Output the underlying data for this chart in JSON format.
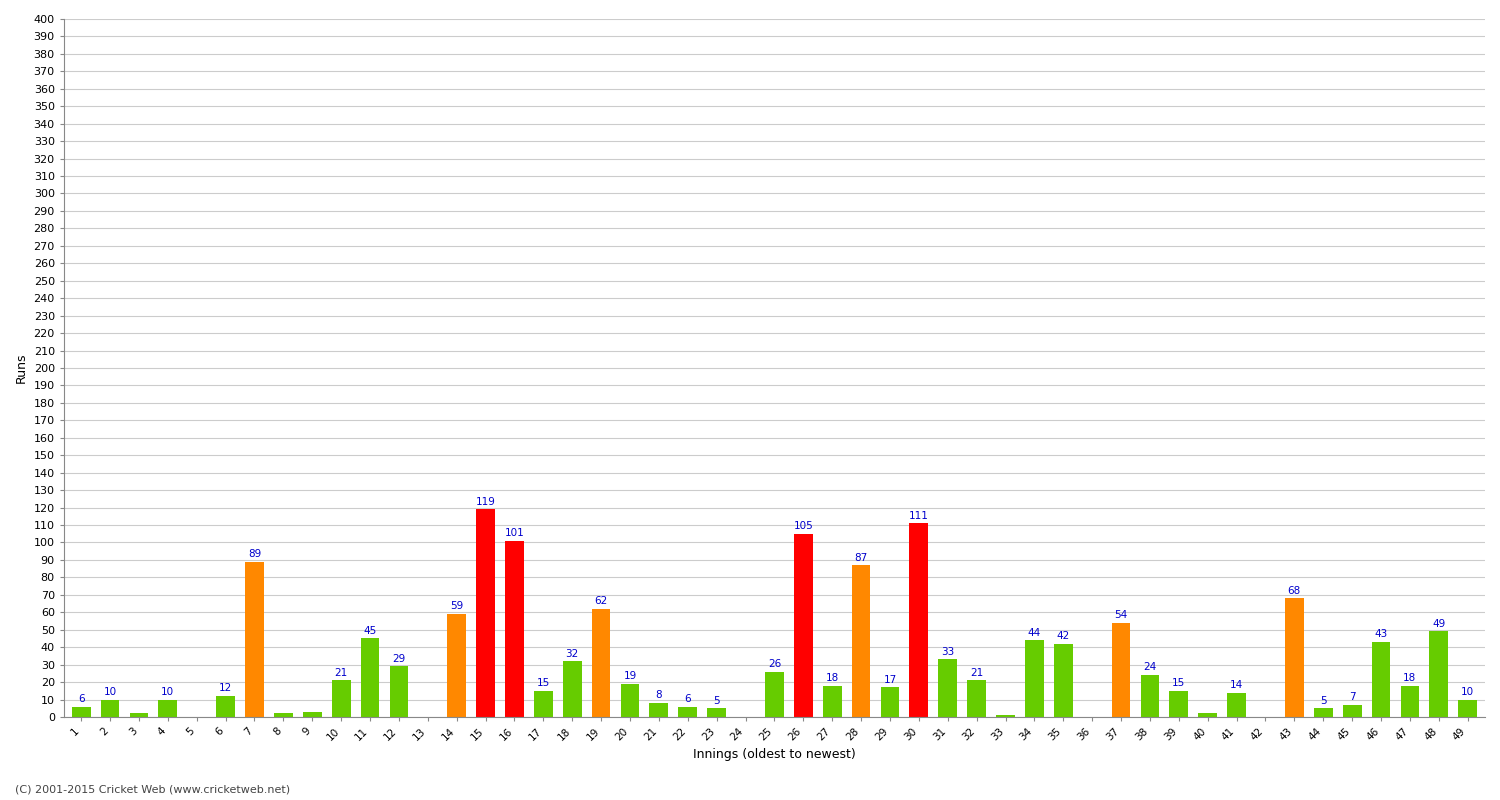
{
  "xlabel": "Innings (oldest to newest)",
  "ylabel": "Runs",
  "ylim": [
    0,
    400
  ],
  "background_color": "#ffffff",
  "grid_color": "#cccccc",
  "footer": "(C) 2001-2015 Cricket Web (www.cricketweb.net)",
  "innings_data": [
    [
      1,
      6,
      "#66cc00"
    ],
    [
      2,
      10,
      "#66cc00"
    ],
    [
      3,
      2,
      "#66cc00"
    ],
    [
      4,
      10,
      "#66cc00"
    ],
    [
      5,
      0,
      "#66cc00"
    ],
    [
      6,
      12,
      "#66cc00"
    ],
    [
      7,
      89,
      "#ff8800"
    ],
    [
      8,
      2,
      "#66cc00"
    ],
    [
      9,
      3,
      "#66cc00"
    ],
    [
      10,
      21,
      "#66cc00"
    ],
    [
      11,
      45,
      "#66cc00"
    ],
    [
      12,
      29,
      "#66cc00"
    ],
    [
      13,
      0,
      "#66cc00"
    ],
    [
      14,
      59,
      "#ff8800"
    ],
    [
      15,
      119,
      "#ff0000"
    ],
    [
      16,
      101,
      "#ff0000"
    ],
    [
      17,
      15,
      "#66cc00"
    ],
    [
      18,
      32,
      "#66cc00"
    ],
    [
      19,
      62,
      "#ff8800"
    ],
    [
      20,
      19,
      "#66cc00"
    ],
    [
      21,
      8,
      "#66cc00"
    ],
    [
      22,
      6,
      "#66cc00"
    ],
    [
      23,
      5,
      "#66cc00"
    ],
    [
      24,
      0,
      "#66cc00"
    ],
    [
      25,
      26,
      "#66cc00"
    ],
    [
      26,
      105,
      "#ff0000"
    ],
    [
      27,
      18,
      "#66cc00"
    ],
    [
      28,
      87,
      "#ff8800"
    ],
    [
      29,
      17,
      "#66cc00"
    ],
    [
      30,
      111,
      "#ff0000"
    ],
    [
      31,
      33,
      "#66cc00"
    ],
    [
      32,
      21,
      "#66cc00"
    ],
    [
      33,
      1,
      "#66cc00"
    ],
    [
      34,
      44,
      "#66cc00"
    ],
    [
      35,
      42,
      "#66cc00"
    ],
    [
      36,
      0,
      "#66cc00"
    ],
    [
      37,
      54,
      "#ff8800"
    ],
    [
      38,
      24,
      "#66cc00"
    ],
    [
      39,
      15,
      "#66cc00"
    ],
    [
      40,
      2,
      "#66cc00"
    ],
    [
      41,
      14,
      "#66cc00"
    ],
    [
      42,
      0,
      "#66cc00"
    ],
    [
      43,
      68,
      "#ff8800"
    ],
    [
      44,
      5,
      "#66cc00"
    ],
    [
      45,
      7,
      "#66cc00"
    ],
    [
      46,
      43,
      "#66cc00"
    ],
    [
      47,
      18,
      "#66cc00"
    ],
    [
      48,
      49,
      "#66cc00"
    ],
    [
      49,
      10,
      "#66cc00"
    ]
  ],
  "label_min_value": 5,
  "label_color": "#0000cc",
  "label_fontsize": 7.5,
  "ytick_fontsize": 8,
  "xtick_fontsize": 7.5,
  "ylabel_fontsize": 9,
  "xlabel_fontsize": 9,
  "bar_width": 0.65
}
